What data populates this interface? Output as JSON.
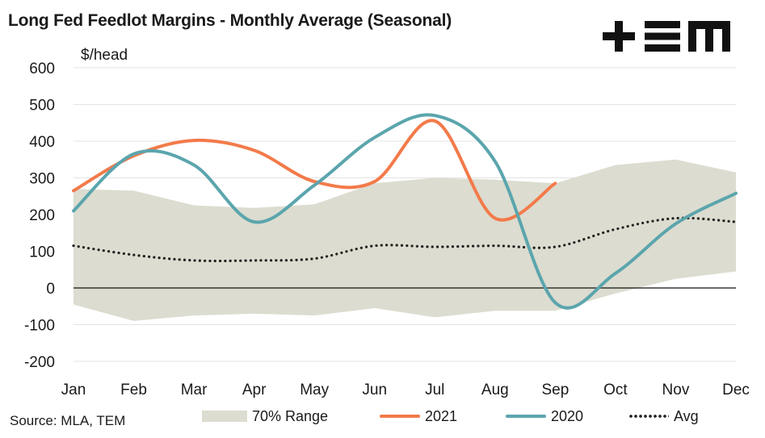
{
  "title": "Long Fed Feedlot Margins - Monthly Average (Seasonal)",
  "source": "Source: MLA, TEM",
  "colors": {
    "range": "#dcdcd0",
    "s2021": "#f37a4a",
    "s2020": "#5ba5ad",
    "avg": "#222222",
    "grid": "#e3e3e3",
    "logo": "#111111"
  },
  "chart_data": {
    "type": "line",
    "title": "Long Fed Feedlot Margins - Monthly Average (Seasonal)",
    "ylabel": "$/head",
    "xlabel": "",
    "ylim": [
      -200,
      600
    ],
    "yticks": [
      -200,
      -100,
      0,
      100,
      200,
      300,
      400,
      500,
      600
    ],
    "categories": [
      "Jan",
      "Feb",
      "Mar",
      "Apr",
      "May",
      "Jun",
      "Jul",
      "Aug",
      "Sep",
      "Oct",
      "Nov",
      "Dec"
    ],
    "range70": {
      "name": "70% Range",
      "upper": [
        270,
        265,
        225,
        218,
        228,
        285,
        300,
        295,
        285,
        335,
        350,
        315
      ],
      "lower": [
        -45,
        -90,
        -75,
        -70,
        -75,
        -55,
        -80,
        -62,
        -62,
        -15,
        25,
        45
      ]
    },
    "series": [
      {
        "name": "2021",
        "values": [
          265,
          360,
          402,
          375,
          290,
          290,
          455,
          190,
          285,
          null,
          null,
          null
        ]
      },
      {
        "name": "2020",
        "values": [
          210,
          365,
          335,
          180,
          280,
          410,
          470,
          345,
          -40,
          40,
          175,
          258
        ]
      },
      {
        "name": "Avg",
        "values": [
          115,
          90,
          75,
          75,
          80,
          115,
          112,
          115,
          112,
          160,
          190,
          180
        ]
      }
    ],
    "grid": true,
    "legend_position": "bottom"
  }
}
